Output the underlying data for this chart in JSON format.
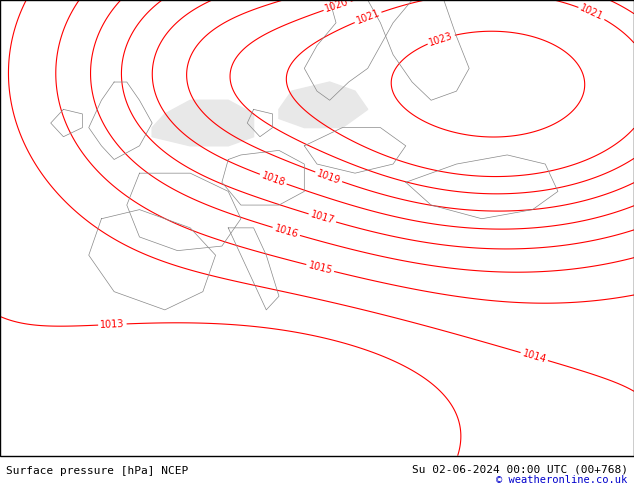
{
  "title_left": "Surface pressure [hPa] NCEP",
  "title_right": "Su 02-06-2024 00:00 UTC (00+768)",
  "copyright": "© weatheronline.co.uk",
  "bg_color": "#c8c8c8",
  "land_color": "#c8ffc8",
  "sea_color": "#e8e8e8",
  "contour_color": "red",
  "contour_label_color": "red",
  "low_label_color": "black",
  "border_color": "#888888",
  "bottom_bar_color": "#ffffff",
  "bottom_text_color": "#000000",
  "isobar_levels": [
    1013,
    1014,
    1015,
    1016,
    1017,
    1018,
    1019,
    1020,
    1021,
    1023
  ],
  "figsize": [
    6.34,
    4.9
  ],
  "dpi": 100
}
